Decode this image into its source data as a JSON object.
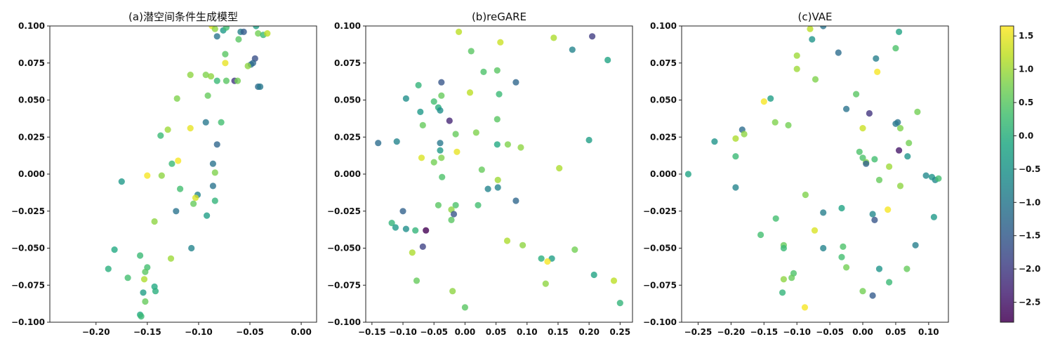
{
  "chart_data": {
    "type": "scatter",
    "colormap": "viridis",
    "alpha": 0.8,
    "colorbar": {
      "range": [
        -2.8,
        1.65
      ],
      "ticks": [
        "1.5",
        "1.0",
        "0.5",
        "0.0",
        "−0.5",
        "−1.0",
        "−1.5",
        "−2.0",
        "−2.5"
      ],
      "tick_values": [
        1.5,
        1.0,
        0.5,
        0.0,
        -0.5,
        -1.0,
        -1.5,
        -2.0,
        -2.5
      ]
    },
    "panels": [
      {
        "title": "(a)潜空间条件生成模型",
        "xlim": [
          -0.245,
          0.015
        ],
        "ylim": [
          -0.1,
          0.1
        ],
        "xticks": [
          "−0.20",
          "−0.15",
          "−0.10",
          "−0.05",
          "0.00"
        ],
        "xtick_values": [
          -0.2,
          -0.15,
          -0.1,
          -0.05,
          0.0
        ],
        "yticks": [
          "0.100",
          "0.075",
          "0.050",
          "0.025",
          "0.000",
          "−0.025",
          "−0.050",
          "−0.075",
          "−0.100"
        ],
        "ytick_values": [
          0.1,
          0.075,
          0.05,
          0.025,
          0.0,
          -0.025,
          -0.05,
          -0.075,
          -0.1
        ],
        "points": [
          [
            -0.087,
            0.1,
            1.5
          ],
          [
            -0.084,
            0.098,
            0.9
          ],
          [
            -0.076,
            0.097,
            -0.4
          ],
          [
            -0.073,
            0.099,
            0.3
          ],
          [
            -0.082,
            0.093,
            -1.1
          ],
          [
            -0.059,
            0.096,
            -0.9
          ],
          [
            -0.056,
            0.096,
            -1.5
          ],
          [
            -0.044,
            0.1,
            -0.3
          ],
          [
            -0.042,
            0.095,
            0.7
          ],
          [
            -0.037,
            0.094,
            0.2
          ],
          [
            -0.033,
            0.095,
            1.2
          ],
          [
            -0.061,
            0.091,
            0.5
          ],
          [
            -0.074,
            0.081,
            0.5
          ],
          [
            -0.074,
            0.075,
            1.5
          ],
          [
            -0.045,
            0.078,
            -1.7
          ],
          [
            -0.047,
            0.075,
            -1.3
          ],
          [
            -0.049,
            0.074,
            -1.2
          ],
          [
            -0.052,
            0.073,
            0.9
          ],
          [
            -0.108,
            0.067,
            0.9
          ],
          [
            -0.093,
            0.067,
            0.8
          ],
          [
            -0.088,
            0.066,
            0.9
          ],
          [
            -0.082,
            0.063,
            0.2
          ],
          [
            -0.073,
            0.063,
            0.5
          ],
          [
            -0.065,
            0.063,
            -2.1
          ],
          [
            -0.062,
            0.063,
            0.7
          ],
          [
            -0.042,
            0.059,
            -1.2
          ],
          [
            -0.04,
            0.059,
            -1.0
          ],
          [
            -0.121,
            0.051,
            0.8
          ],
          [
            -0.091,
            0.053,
            0.6
          ],
          [
            -0.13,
            0.03,
            1.0
          ],
          [
            -0.137,
            0.026,
            0.2
          ],
          [
            -0.108,
            0.031,
            1.5
          ],
          [
            -0.093,
            0.035,
            -1.0
          ],
          [
            -0.078,
            0.035,
            0.3
          ],
          [
            -0.082,
            0.02,
            -1.3
          ],
          [
            -0.126,
            0.007,
            0.2
          ],
          [
            -0.12,
            0.009,
            1.6
          ],
          [
            -0.086,
            0.007,
            -1.1
          ],
          [
            -0.084,
            0.001,
            0.8
          ],
          [
            -0.175,
            -0.005,
            -0.4
          ],
          [
            -0.15,
            -0.001,
            1.6
          ],
          [
            -0.136,
            -0.001,
            0.9
          ],
          [
            -0.086,
            -0.008,
            -1.1
          ],
          [
            -0.118,
            -0.01,
            0.3
          ],
          [
            -0.101,
            -0.014,
            -0.8
          ],
          [
            -0.103,
            -0.016,
            1.4
          ],
          [
            -0.105,
            -0.02,
            0.6
          ],
          [
            -0.084,
            -0.018,
            0.1
          ],
          [
            -0.122,
            -0.025,
            -1.1
          ],
          [
            -0.092,
            -0.028,
            -0.3
          ],
          [
            -0.143,
            -0.032,
            0.9
          ],
          [
            -0.182,
            -0.051,
            -0.1
          ],
          [
            -0.107,
            -0.05,
            -0.8
          ],
          [
            -0.157,
            -0.055,
            0.2
          ],
          [
            -0.127,
            -0.057,
            1.0
          ],
          [
            -0.188,
            -0.064,
            0.0
          ],
          [
            -0.15,
            -0.063,
            0.3
          ],
          [
            -0.152,
            -0.066,
            0.5
          ],
          [
            -0.169,
            -0.07,
            0.3
          ],
          [
            -0.153,
            -0.071,
            1.1
          ],
          [
            -0.143,
            -0.076,
            -0.1
          ],
          [
            -0.142,
            -0.079,
            0.0
          ],
          [
            -0.154,
            -0.08,
            -0.3
          ],
          [
            -0.152,
            -0.086,
            0.6
          ],
          [
            -0.157,
            -0.095,
            -0.1
          ],
          [
            -0.156,
            -0.096,
            0.2
          ]
        ]
      },
      {
        "title": "(b)reGARE",
        "xlim": [
          -0.16,
          0.27
        ],
        "ylim": [
          -0.1,
          0.1
        ],
        "xticks": [
          "−0.15",
          "−0.10",
          "−0.05",
          "0.00",
          "0.05",
          "0.10",
          "0.15",
          "0.20",
          "0.25"
        ],
        "xtick_values": [
          -0.15,
          -0.1,
          -0.05,
          0.0,
          0.05,
          0.1,
          0.15,
          0.2,
          0.25
        ],
        "yticks": [
          "0.100",
          "0.075",
          "0.050",
          "0.025",
          "0.000",
          "−0.025",
          "−0.050",
          "−0.075",
          "−0.100"
        ],
        "ytick_values": [
          0.1,
          0.075,
          0.05,
          0.025,
          0.0,
          -0.025,
          -0.05,
          -0.075,
          -0.1
        ],
        "points": [
          [
            -0.01,
            0.096,
            1.2
          ],
          [
            0.205,
            0.093,
            -2.0
          ],
          [
            0.143,
            0.092,
            1.1
          ],
          [
            0.057,
            0.089,
            1.3
          ],
          [
            0.173,
            0.084,
            -0.8
          ],
          [
            0.01,
            0.083,
            0.5
          ],
          [
            0.23,
            0.077,
            -0.2
          ],
          [
            0.03,
            0.069,
            0.4
          ],
          [
            0.052,
            0.07,
            0.5
          ],
          [
            -0.038,
            0.062,
            -1.6
          ],
          [
            0.082,
            0.062,
            -1.3
          ],
          [
            -0.075,
            0.06,
            0.1
          ],
          [
            -0.038,
            0.053,
            0.6
          ],
          [
            0.008,
            0.055,
            1.2
          ],
          [
            0.055,
            0.054,
            0.2
          ],
          [
            -0.095,
            0.051,
            -0.6
          ],
          [
            -0.05,
            0.049,
            0.3
          ],
          [
            -0.043,
            0.045,
            0.0
          ],
          [
            -0.04,
            0.043,
            -0.6
          ],
          [
            -0.072,
            0.042,
            -0.4
          ],
          [
            0.052,
            0.037,
            0.5
          ],
          [
            0.2,
            0.023,
            -0.3
          ],
          [
            -0.068,
            0.033,
            0.6
          ],
          [
            -0.025,
            0.036,
            -2.3
          ],
          [
            0.018,
            0.028,
            0.8
          ],
          [
            -0.015,
            0.027,
            0.6
          ],
          [
            -0.14,
            0.021,
            -1.2
          ],
          [
            -0.11,
            0.022,
            -0.8
          ],
          [
            -0.04,
            0.021,
            -1.0
          ],
          [
            0.052,
            0.02,
            -0.1
          ],
          [
            0.069,
            0.02,
            0.8
          ],
          [
            0.09,
            0.018,
            0.9
          ],
          [
            -0.04,
            0.016,
            -0.4
          ],
          [
            -0.013,
            0.015,
            1.5
          ],
          [
            -0.07,
            0.011,
            1.4
          ],
          [
            -0.038,
            0.011,
            0.8
          ],
          [
            -0.05,
            0.008,
            0.7
          ],
          [
            0.152,
            0.004,
            1.1
          ],
          [
            0.027,
            0.003,
            0.6
          ],
          [
            -0.037,
            -0.002,
            0.4
          ],
          [
            0.053,
            -0.004,
            1.0
          ],
          [
            0.037,
            -0.01,
            -0.8
          ],
          [
            0.053,
            -0.009,
            -0.8
          ],
          [
            0.082,
            -0.018,
            -1.3
          ],
          [
            0.021,
            -0.021,
            0.3
          ],
          [
            -0.043,
            -0.021,
            0.5
          ],
          [
            -0.015,
            -0.021,
            0.4
          ],
          [
            -0.1,
            -0.025,
            -1.4
          ],
          [
            -0.022,
            -0.024,
            0.9
          ],
          [
            -0.018,
            -0.027,
            -1.6
          ],
          [
            -0.022,
            -0.031,
            0.5
          ],
          [
            -0.118,
            -0.033,
            0.1
          ],
          [
            -0.112,
            -0.036,
            -0.4
          ],
          [
            -0.095,
            -0.037,
            -0.6
          ],
          [
            -0.08,
            -0.038,
            0.1
          ],
          [
            -0.063,
            -0.038,
            -2.8
          ],
          [
            -0.068,
            -0.049,
            -1.9
          ],
          [
            -0.085,
            -0.053,
            1.1
          ],
          [
            0.068,
            -0.045,
            1.1
          ],
          [
            0.093,
            -0.048,
            0.9
          ],
          [
            0.177,
            -0.051,
            0.7
          ],
          [
            0.123,
            -0.057,
            0.0
          ],
          [
            0.14,
            -0.057,
            -0.3
          ],
          [
            0.133,
            -0.059,
            1.6
          ],
          [
            0.208,
            -0.068,
            -0.2
          ],
          [
            -0.078,
            -0.072,
            0.6
          ],
          [
            0.24,
            -0.072,
            1.2
          ],
          [
            0.13,
            -0.074,
            0.9
          ],
          [
            -0.02,
            -0.079,
            0.9
          ],
          [
            0.25,
            -0.087,
            0.1
          ],
          [
            0.0,
            -0.09,
            0.5
          ]
        ]
      },
      {
        "title": "(c)VAE",
        "xlim": [
          -0.275,
          0.13
        ],
        "ylim": [
          -0.1,
          0.1
        ],
        "xticks": [
          "−0.25",
          "−0.20",
          "−0.15",
          "−0.10",
          "−0.05",
          "0.00",
          "0.05",
          "0.10"
        ],
        "xtick_values": [
          -0.25,
          -0.2,
          -0.15,
          -0.1,
          -0.05,
          0.0,
          0.05,
          0.1
        ],
        "yticks": [
          "0.100",
          "0.075",
          "0.050",
          "0.025",
          "0.000",
          "−0.025",
          "−0.050",
          "−0.075",
          "−0.100"
        ],
        "ytick_values": [
          0.1,
          0.075,
          0.05,
          0.025,
          0.0,
          -0.025,
          -0.05,
          -0.075,
          -0.1
        ],
        "points": [
          [
            -0.08,
            0.098,
            1.2
          ],
          [
            -0.06,
            0.1,
            -1.1
          ],
          [
            0.055,
            0.096,
            -0.2
          ],
          [
            -0.077,
            0.091,
            -0.5
          ],
          [
            -0.037,
            0.082,
            -1.2
          ],
          [
            -0.1,
            0.08,
            1.0
          ],
          [
            0.05,
            0.085,
            0.4
          ],
          [
            0.02,
            0.078,
            -0.9
          ],
          [
            -0.1,
            0.071,
            1.0
          ],
          [
            0.022,
            0.069,
            1.6
          ],
          [
            -0.072,
            0.064,
            0.8
          ],
          [
            -0.14,
            0.051,
            -0.3
          ],
          [
            -0.15,
            0.049,
            1.6
          ],
          [
            -0.01,
            0.054,
            0.5
          ],
          [
            -0.025,
            0.044,
            -1.1
          ],
          [
            0.01,
            0.041,
            -2.1
          ],
          [
            0.083,
            0.042,
            0.7
          ],
          [
            -0.133,
            0.035,
            0.8
          ],
          [
            -0.113,
            0.033,
            0.7
          ],
          [
            0.053,
            0.035,
            -1.1
          ],
          [
            0.05,
            0.034,
            -1.0
          ],
          [
            0.057,
            0.031,
            0.8
          ],
          [
            0.0,
            0.031,
            1.3
          ],
          [
            -0.183,
            0.03,
            -1.2
          ],
          [
            -0.193,
            0.024,
            1.1
          ],
          [
            -0.18,
            0.027,
            0.9
          ],
          [
            -0.225,
            0.022,
            -0.5
          ],
          [
            0.07,
            0.021,
            0.7
          ],
          [
            -0.005,
            0.015,
            0.4
          ],
          [
            0.055,
            0.016,
            -2.5
          ],
          [
            0.068,
            0.012,
            -0.5
          ],
          [
            -0.193,
            0.012,
            0.2
          ],
          [
            0.0,
            0.011,
            0.4
          ],
          [
            0.005,
            0.008,
            0.8
          ],
          [
            0.005,
            0.007,
            -1.4
          ],
          [
            0.018,
            0.01,
            0.3
          ],
          [
            0.04,
            0.005,
            1.0
          ],
          [
            -0.265,
            0.0,
            -0.2
          ],
          [
            0.096,
            -0.001,
            -0.7
          ],
          [
            0.105,
            -0.002,
            -0.5
          ],
          [
            0.11,
            -0.004,
            -0.7
          ],
          [
            0.115,
            -0.003,
            0.3
          ],
          [
            0.025,
            -0.004,
            0.6
          ],
          [
            0.057,
            -0.008,
            0.9
          ],
          [
            -0.193,
            -0.009,
            -0.8
          ],
          [
            -0.087,
            -0.014,
            0.8
          ],
          [
            0.038,
            -0.024,
            1.6
          ],
          [
            -0.032,
            -0.023,
            -0.2
          ],
          [
            -0.06,
            -0.026,
            -0.9
          ],
          [
            0.015,
            -0.027,
            -0.7
          ],
          [
            0.018,
            -0.031,
            -1.6
          ],
          [
            0.108,
            -0.029,
            -0.4
          ],
          [
            -0.132,
            -0.03,
            0.3
          ],
          [
            -0.155,
            -0.041,
            0.3
          ],
          [
            -0.073,
            -0.038,
            1.4
          ],
          [
            -0.12,
            -0.048,
            0.6
          ],
          [
            -0.12,
            -0.05,
            0.2
          ],
          [
            -0.06,
            -0.05,
            -0.8
          ],
          [
            -0.03,
            -0.049,
            0.4
          ],
          [
            0.08,
            -0.048,
            -0.9
          ],
          [
            -0.032,
            -0.056,
            0.3
          ],
          [
            -0.025,
            -0.063,
            0.7
          ],
          [
            0.025,
            -0.064,
            -0.5
          ],
          [
            0.067,
            -0.064,
            0.6
          ],
          [
            -0.105,
            -0.067,
            0.4
          ],
          [
            -0.108,
            -0.07,
            0.6
          ],
          [
            -0.12,
            -0.071,
            0.9
          ],
          [
            0.04,
            -0.073,
            0.2
          ],
          [
            -0.122,
            -0.08,
            0.1
          ],
          [
            0.0,
            -0.079,
            0.7
          ],
          [
            0.015,
            -0.082,
            -1.5
          ],
          [
            -0.088,
            -0.09,
            1.6
          ]
        ]
      }
    ]
  }
}
